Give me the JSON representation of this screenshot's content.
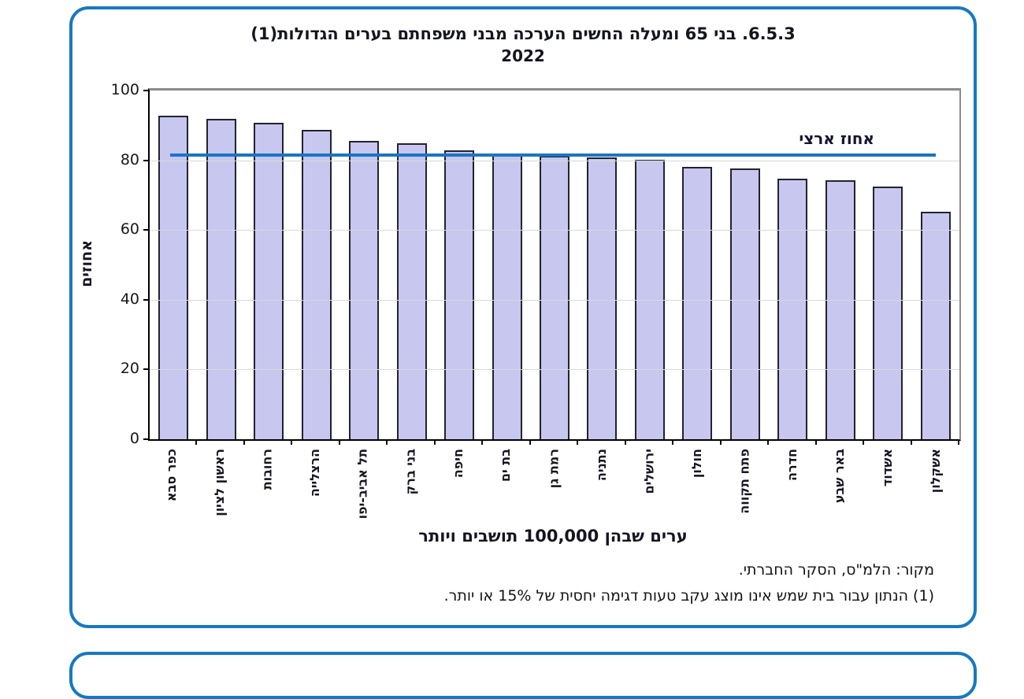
{
  "chart_data": {
    "type": "bar",
    "title": "6.5.3. בני 65 ומעלה החשים הערכה מבני משפחתם בערים הגדולות(1)",
    "subtitle": "2022",
    "categories": [
      "כפר סבא",
      "ראשון לציון",
      "רחובות",
      "הרצלייה",
      "תל אביב-יפו",
      "בני ברק",
      "חיפה",
      "בת ים",
      "רמת גן",
      "נתניה",
      "ירושלים",
      "חולון",
      "פתח תקווה",
      "חדרה",
      "באר שבע",
      "אשדוד",
      "אשקלון"
    ],
    "values": [
      92.3,
      91.4,
      90.3,
      88.2,
      85.0,
      84.4,
      82.3,
      81.4,
      80.9,
      80.3,
      79.8,
      77.7,
      77.3,
      74.2,
      73.8,
      72.1,
      64.8
    ],
    "national_line": {
      "label": "אחוז ארצי",
      "value": 81.5
    },
    "xlabel": "ערים שבהן 100,000 תושבים ויותר",
    "ylabel": "אחוזים",
    "ylim": [
      0,
      100
    ],
    "yticks": [
      0,
      20,
      40,
      60,
      80,
      100
    ],
    "grid": true,
    "legend_position": "none",
    "bar_color": "#c7c7f0",
    "bar_border_color": "#23232e",
    "national_line_color": "#1b75c4"
  },
  "footnotes": {
    "source": "מקור: הלמ\"ס, הסקר החברתי.",
    "note1": "(1) הנתון עבור בית שמש אינו מוצג עקב טעות דגימה יחסית של 15% או יותר."
  },
  "frame": {
    "border_color": "#1779c0"
  }
}
